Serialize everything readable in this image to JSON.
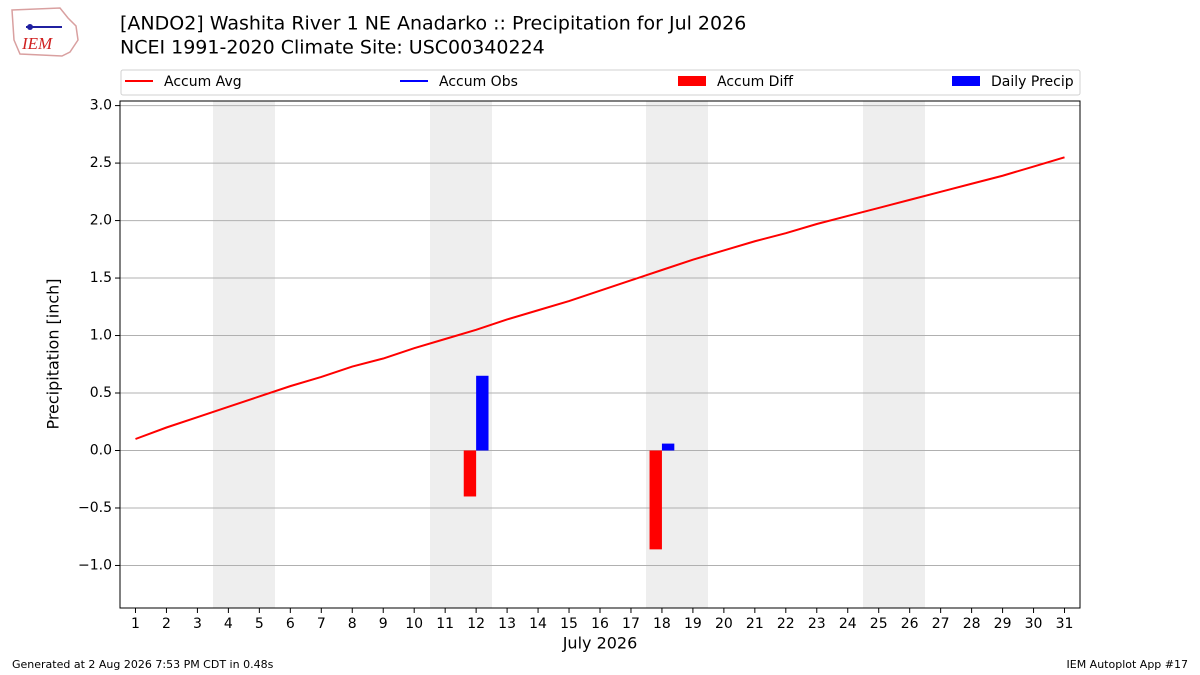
{
  "chart_data": {
    "type": "bar_line",
    "title": "[ANDO2] Washita River 1 NE Anadarko :: Precipitation for Jul 2026",
    "subtitle": "NCEI 1991-2020 Climate Site: USC00340224",
    "logo_text": "IEM",
    "ylabel": "Precipitation [inch]",
    "xlabel": "July 2026",
    "x": [
      1,
      2,
      3,
      4,
      5,
      6,
      7,
      8,
      9,
      10,
      11,
      12,
      13,
      14,
      15,
      16,
      17,
      18,
      19,
      20,
      21,
      22,
      23,
      24,
      25,
      26,
      27,
      28,
      29,
      30,
      31
    ],
    "xlim": [
      0.5,
      31.5
    ],
    "xticks": [
      1,
      2,
      3,
      4,
      5,
      6,
      7,
      8,
      9,
      10,
      11,
      12,
      13,
      14,
      15,
      16,
      17,
      18,
      19,
      20,
      21,
      22,
      23,
      24,
      25,
      26,
      27,
      28,
      29,
      30,
      31
    ],
    "ylim": [
      -1.37,
      3.04
    ],
    "yticks": [
      {
        "value": -1.0,
        "label": "−1.0"
      },
      {
        "value": -0.5,
        "label": "−0.5"
      },
      {
        "value": 0.0,
        "label": "0.0"
      },
      {
        "value": 0.5,
        "label": "0.5"
      },
      {
        "value": 1.0,
        "label": "1.0"
      },
      {
        "value": 1.5,
        "label": "1.5"
      },
      {
        "value": 2.0,
        "label": "2.0"
      },
      {
        "value": 2.5,
        "label": "2.5"
      },
      {
        "value": 3.0,
        "label": "3.0"
      }
    ],
    "grid": true,
    "series": [
      {
        "name": "Accum Avg",
        "kind": "line",
        "color": "#ff0000",
        "values": [
          0.1,
          0.2,
          0.29,
          0.38,
          0.47,
          0.56,
          0.64,
          0.73,
          0.8,
          0.89,
          0.97,
          1.05,
          1.14,
          1.22,
          1.3,
          1.39,
          1.48,
          1.57,
          1.66,
          1.74,
          1.82,
          1.89,
          1.97,
          2.04,
          2.11,
          2.18,
          2.25,
          2.32,
          2.39,
          2.47,
          2.55
        ]
      },
      {
        "name": "Accum Obs",
        "kind": "line",
        "color": "#0000ff",
        "values": [
          null,
          null,
          null,
          null,
          null,
          null,
          null,
          null,
          null,
          null,
          null,
          null,
          null,
          null,
          null,
          null,
          null,
          null,
          null,
          null,
          null,
          null,
          null,
          null,
          null,
          null,
          null,
          null,
          null,
          null,
          null
        ]
      },
      {
        "name": "Accum Diff",
        "kind": "bar",
        "color": "#ff0000",
        "values": [
          null,
          null,
          null,
          null,
          null,
          null,
          null,
          null,
          null,
          null,
          null,
          -0.4,
          null,
          null,
          null,
          null,
          null,
          -0.86,
          null,
          null,
          null,
          null,
          null,
          null,
          null,
          null,
          null,
          null,
          null,
          null,
          null
        ]
      },
      {
        "name": "Daily Precip",
        "kind": "bar",
        "color": "#0000ff",
        "values": [
          null,
          null,
          null,
          null,
          null,
          null,
          null,
          null,
          null,
          null,
          null,
          0.65,
          null,
          null,
          null,
          null,
          null,
          0.06,
          null,
          null,
          null,
          null,
          null,
          null,
          null,
          null,
          null,
          null,
          null,
          null,
          null
        ]
      }
    ],
    "footer_left": "Generated at 2 Aug 2026 7:53 PM CDT in 0.48s",
    "footer_right": "IEM Autoplot App #17"
  }
}
